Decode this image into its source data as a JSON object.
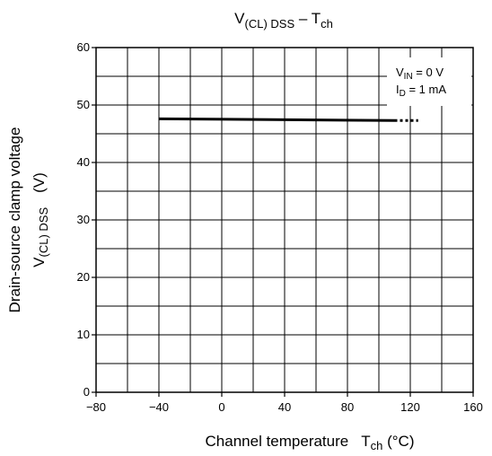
{
  "chart_data": {
    "type": "line",
    "title": {
      "main": "V",
      "sub1": "(CL) DSS",
      "dash": " – T",
      "sub2": "ch"
    },
    "xlabel": {
      "main": "Channel temperature",
      "symbol": "T",
      "sub": "ch",
      "unit": " (°C)"
    },
    "ylabel": {
      "line1": "Drain-source clamp voltage",
      "symbol": "V",
      "sub": "(CL) DSS",
      "unit": "(V)"
    },
    "xlim": [
      -80,
      160
    ],
    "ylim": [
      0,
      60
    ],
    "x_major_ticks": [
      -80,
      -40,
      0,
      40,
      80,
      120,
      160
    ],
    "x_tick_labels": [
      "−80",
      "−40",
      "0",
      "40",
      "80",
      "120",
      "160"
    ],
    "y_major_ticks": [
      0,
      10,
      20,
      30,
      40,
      50,
      60
    ],
    "y_tick_labels": [
      "0",
      "10",
      "20",
      "30",
      "40",
      "50",
      "60"
    ],
    "grid": true,
    "grid_x_step": 20,
    "grid_y_step": 5,
    "conditions": {
      "line1": {
        "symbol": "V",
        "sub": "IN",
        "value": " = 0 V"
      },
      "line2": {
        "symbol": "I",
        "sub": "D",
        "value": " = 1 mA"
      }
    },
    "series": [
      {
        "style": "solid",
        "x": [
          -40,
          110
        ],
        "y": [
          47.6,
          47.3
        ]
      },
      {
        "style": "dotted",
        "x": [
          110,
          125
        ],
        "y": [
          47.3,
          47.3
        ]
      }
    ]
  }
}
